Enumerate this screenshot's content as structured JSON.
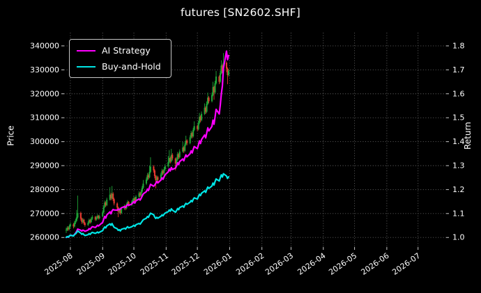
{
  "window": {
    "title": "futures [SN2602.SHF]"
  },
  "chart_data": {
    "type": "candlestick+line",
    "title": "futures [SN2602.SHF]",
    "background": "#000000",
    "grid": {
      "show": true,
      "style": "dotted",
      "color": "#6b6b6b"
    },
    "price_axis": {
      "label": "Price",
      "side": "left",
      "ticks": [
        260000,
        270000,
        280000,
        290000,
        300000,
        310000,
        320000,
        330000,
        340000
      ],
      "domain": [
        256000,
        345500
      ]
    },
    "return_axis": {
      "label": "Return",
      "side": "right",
      "ticks": [
        1.0,
        1.1,
        1.2,
        1.3,
        1.4,
        1.5,
        1.6,
        1.7,
        1.8
      ],
      "domain": [
        0.96,
        1.855
      ]
    },
    "x_axis": {
      "domain": [
        "2025-07-26",
        "2026-07-28"
      ],
      "tick_dates": [
        "2025-08-01",
        "2025-09-01",
        "2025-10-01",
        "2025-11-01",
        "2025-12-01",
        "2026-01-01",
        "2026-02-01",
        "2026-03-01",
        "2026-04-01",
        "2026-05-01",
        "2026-06-01",
        "2026-07-01"
      ],
      "tick_labels": [
        "2025-08",
        "2025-09",
        "2025-10",
        "2025-11",
        "2025-12",
        "2026-01",
        "2026-02",
        "2026-03",
        "2026-04",
        "2026-05",
        "2026-06",
        "2026-07"
      ],
      "label_rotation": -35
    },
    "legend": {
      "position": "top-left",
      "entries": [
        {
          "label": "AI Strategy",
          "color": "#ff00ff"
        },
        {
          "label": "Buy-and-Hold",
          "color": "#00e5e5"
        }
      ]
    },
    "candles": {
      "up_color": "#1fa637",
      "down_color": "#e8392f",
      "columns": [
        "date",
        "open",
        "high",
        "low",
        "close"
      ],
      "rows": [
        [
          "2025-07-28",
          263000,
          264100,
          261900,
          263200
        ],
        [
          "2025-07-29",
          263200,
          264700,
          262700,
          264000
        ],
        [
          "2025-07-30",
          264000,
          264600,
          262800,
          263500
        ],
        [
          "2025-07-31",
          263500,
          265400,
          263100,
          264800
        ],
        [
          "2025-08-01",
          264800,
          266300,
          264200,
          265500
        ],
        [
          "2025-08-04",
          265500,
          266000,
          263800,
          264600
        ],
        [
          "2025-08-05",
          264600,
          266900,
          264200,
          266200
        ],
        [
          "2025-08-06",
          266200,
          267800,
          265600,
          267000
        ],
        [
          "2025-08-07",
          267000,
          271500,
          266600,
          268400
        ],
        [
          "2025-08-08",
          268400,
          277500,
          267900,
          270200
        ],
        [
          "2025-08-11",
          270200,
          270800,
          267000,
          267800
        ],
        [
          "2025-08-12",
          267800,
          268300,
          265700,
          266500
        ],
        [
          "2025-08-13",
          266500,
          268100,
          265900,
          267400
        ],
        [
          "2025-08-14",
          267400,
          267800,
          265300,
          266000
        ],
        [
          "2025-08-15",
          266000,
          266500,
          264500,
          265200
        ],
        [
          "2025-08-18",
          265200,
          266800,
          264800,
          266100
        ],
        [
          "2025-08-19",
          266100,
          267900,
          265700,
          267300
        ],
        [
          "2025-08-20",
          267300,
          267700,
          265800,
          266400
        ],
        [
          "2025-08-21",
          266400,
          268400,
          266000,
          267800
        ],
        [
          "2025-08-22",
          267800,
          269300,
          267300,
          268600
        ],
        [
          "2025-08-25",
          268600,
          269000,
          266900,
          267500
        ],
        [
          "2025-08-26",
          267500,
          268900,
          267000,
          268200
        ],
        [
          "2025-08-27",
          268200,
          269700,
          267700,
          269000
        ],
        [
          "2025-08-28",
          269000,
          269400,
          267500,
          268100
        ],
        [
          "2025-08-29",
          268100,
          269500,
          267600,
          268800
        ],
        [
          "2025-09-01",
          268800,
          271200,
          268400,
          270500
        ],
        [
          "2025-09-02",
          270500,
          273500,
          270100,
          272800
        ],
        [
          "2025-09-03",
          272800,
          275400,
          272300,
          274600
        ],
        [
          "2025-09-04",
          274600,
          275100,
          272800,
          273500
        ],
        [
          "2025-09-05",
          273500,
          276600,
          273100,
          275800
        ],
        [
          "2025-09-08",
          275800,
          281000,
          275400,
          277900
        ],
        [
          "2025-09-09",
          277900,
          278600,
          275500,
          276400
        ],
        [
          "2025-09-10",
          276400,
          281500,
          275900,
          278300
        ],
        [
          "2025-09-11",
          278300,
          278900,
          275200,
          276000
        ],
        [
          "2025-09-12",
          276000,
          276600,
          273400,
          274200
        ],
        [
          "2025-09-15",
          274200,
          274700,
          271700,
          272500
        ],
        [
          "2025-09-16",
          272500,
          272900,
          268500,
          270800
        ],
        [
          "2025-09-17",
          270800,
          272400,
          270100,
          271600
        ],
        [
          "2025-09-18",
          271600,
          272000,
          269500,
          270200
        ],
        [
          "2025-09-19",
          270200,
          272700,
          269800,
          272000
        ],
        [
          "2025-09-22",
          272000,
          273800,
          271500,
          273100
        ],
        [
          "2025-09-23",
          273100,
          273600,
          271400,
          272200
        ],
        [
          "2025-09-24",
          272200,
          274500,
          271800,
          273800
        ],
        [
          "2025-09-25",
          273800,
          275600,
          273300,
          274900
        ],
        [
          "2025-09-26",
          274900,
          275200,
          272900,
          273600
        ],
        [
          "2025-09-29",
          273600,
          275500,
          273100,
          274800
        ],
        [
          "2025-09-30",
          274800,
          276300,
          274200,
          275600
        ],
        [
          "2025-10-01",
          275600,
          277200,
          275000,
          276400
        ],
        [
          "2025-10-02",
          276400,
          276800,
          274500,
          275200
        ],
        [
          "2025-10-03",
          275200,
          277700,
          274800,
          277000
        ],
        [
          "2025-10-06",
          277000,
          279300,
          276500,
          278500
        ],
        [
          "2025-10-07",
          278500,
          279000,
          276900,
          277600
        ],
        [
          "2025-10-08",
          277600,
          280000,
          277100,
          279200
        ],
        [
          "2025-10-09",
          279200,
          281600,
          278700,
          280800
        ],
        [
          "2025-10-10",
          280800,
          284000,
          280300,
          282500
        ],
        [
          "2025-10-13",
          282500,
          285100,
          281900,
          284200
        ],
        [
          "2025-10-14",
          284200,
          287000,
          283700,
          286000
        ],
        [
          "2025-10-15",
          286000,
          286700,
          284200,
          285100
        ],
        [
          "2025-10-16",
          285100,
          290000,
          284700,
          287400
        ],
        [
          "2025-10-17",
          287400,
          293500,
          286900,
          289600
        ],
        [
          "2025-10-20",
          289600,
          290200,
          287100,
          288000
        ],
        [
          "2025-10-21",
          288000,
          288500,
          284700,
          285600
        ],
        [
          "2025-10-22",
          285600,
          286000,
          280500,
          283900
        ],
        [
          "2025-10-23",
          283900,
          286000,
          283100,
          285200
        ],
        [
          "2025-10-24",
          285200,
          285700,
          283300,
          284100
        ],
        [
          "2025-10-27",
          284100,
          287100,
          283600,
          286300
        ],
        [
          "2025-10-28",
          286300,
          288700,
          285800,
          287800
        ],
        [
          "2025-10-29",
          287800,
          288300,
          286100,
          286900
        ],
        [
          "2025-10-30",
          286900,
          289400,
          286400,
          288500
        ],
        [
          "2025-10-31",
          288500,
          290600,
          288000,
          289700
        ],
        [
          "2025-11-03",
          289700,
          294000,
          289200,
          291400
        ],
        [
          "2025-11-04",
          291400,
          296500,
          290900,
          293200
        ],
        [
          "2025-11-05",
          293200,
          293800,
          290900,
          291800
        ],
        [
          "2025-11-06",
          291800,
          297000,
          291300,
          294500
        ],
        [
          "2025-11-07",
          294500,
          295200,
          292200,
          293000
        ],
        [
          "2025-11-10",
          293000,
          293400,
          288000,
          290800
        ],
        [
          "2025-11-11",
          290800,
          293500,
          290200,
          292600
        ],
        [
          "2025-11-12",
          292600,
          295700,
          292100,
          294800
        ],
        [
          "2025-11-13",
          294800,
          295300,
          292700,
          293500
        ],
        [
          "2025-11-14",
          293500,
          296800,
          293000,
          295900
        ],
        [
          "2025-11-17",
          295900,
          300000,
          295400,
          297600
        ],
        [
          "2025-11-18",
          297600,
          298100,
          295300,
          296200
        ],
        [
          "2025-11-19",
          296200,
          299700,
          295700,
          298800
        ],
        [
          "2025-11-20",
          298800,
          302500,
          298300,
          300500
        ],
        [
          "2025-11-21",
          300500,
          301000,
          298500,
          299400
        ],
        [
          "2025-11-24",
          299400,
          302700,
          298900,
          301800
        ],
        [
          "2025-11-25",
          301800,
          304600,
          301300,
          303600
        ],
        [
          "2025-11-26",
          303600,
          304100,
          301400,
          302200
        ],
        [
          "2025-11-27",
          302200,
          305800,
          301700,
          304900
        ],
        [
          "2025-11-28",
          304900,
          308500,
          304400,
          306500
        ],
        [
          "2025-12-01",
          306500,
          307000,
          304300,
          305200
        ],
        [
          "2025-12-02",
          305200,
          308700,
          304700,
          307800
        ],
        [
          "2025-12-03",
          307800,
          312000,
          307300,
          310400
        ],
        [
          "2025-12-04",
          310400,
          311000,
          308100,
          309000
        ],
        [
          "2025-12-05",
          309000,
          312600,
          308500,
          311600
        ],
        [
          "2025-12-08",
          311600,
          316000,
          311100,
          314200
        ],
        [
          "2025-12-09",
          314200,
          314800,
          311600,
          312500
        ],
        [
          "2025-12-10",
          312500,
          316800,
          312000,
          315800
        ],
        [
          "2025-12-11",
          315800,
          320500,
          315300,
          318400
        ],
        [
          "2025-12-12",
          318400,
          319000,
          316000,
          316900
        ],
        [
          "2025-12-15",
          316900,
          320500,
          316400,
          319500
        ],
        [
          "2025-12-16",
          319500,
          325000,
          319000,
          322800
        ],
        [
          "2025-12-17",
          322800,
          323300,
          317500,
          320600
        ],
        [
          "2025-12-18",
          320600,
          325400,
          320100,
          324400
        ],
        [
          "2025-12-19",
          324400,
          329500,
          323900,
          327200
        ],
        [
          "2025-12-22",
          327200,
          327700,
          324000,
          325000
        ],
        [
          "2025-12-23",
          325000,
          329600,
          324500,
          328600
        ],
        [
          "2025-12-24",
          328600,
          334000,
          328100,
          331800
        ],
        [
          "2025-12-25",
          331800,
          332300,
          328500,
          329400
        ],
        [
          "2025-12-26",
          329400,
          337000,
          328900,
          333000
        ],
        [
          "2025-12-29",
          333000,
          333600,
          329000,
          330500
        ],
        [
          "2025-12-30",
          330500,
          331000,
          324000,
          327800
        ],
        [
          "2025-12-31",
          327800,
          330400,
          327200,
          329600
        ]
      ]
    },
    "series": [
      {
        "name": "AI Strategy",
        "color": "#ff00ff",
        "axis": "return",
        "dates": "same-as-candles",
        "values": [
          1.0,
          1.003,
          1.001,
          1.006,
          1.01,
          1.007,
          1.013,
          1.018,
          1.025,
          1.035,
          1.03,
          1.027,
          1.031,
          1.029,
          1.026,
          1.031,
          1.037,
          1.034,
          1.04,
          1.045,
          1.042,
          1.046,
          1.051,
          1.048,
          1.052,
          1.063,
          1.076,
          1.088,
          1.081,
          1.094,
          1.107,
          1.099,
          1.111,
          1.117,
          1.115,
          1.114,
          1.118,
          1.116,
          1.119,
          1.124,
          1.129,
          1.126,
          1.132,
          1.138,
          1.134,
          1.14,
          1.145,
          1.15,
          1.144,
          1.153,
          1.161,
          1.156,
          1.164,
          1.173,
          1.182,
          1.192,
          1.202,
          1.196,
          1.209,
          1.222,
          1.214,
          1.219,
          1.226,
          1.234,
          1.228,
          1.24,
          1.249,
          1.243,
          1.253,
          1.262,
          1.274,
          1.286,
          1.278,
          1.292,
          1.284,
          1.29,
          1.3,
          1.312,
          1.304,
          1.317,
          1.328,
          1.32,
          1.334,
          1.345,
          1.337,
          1.35,
          1.362,
          1.353,
          1.368,
          1.38,
          1.371,
          1.386,
          1.403,
          1.392,
          1.409,
          1.428,
          1.416,
          1.437,
          1.458,
          1.445,
          1.464,
          1.49,
          1.473,
          1.503,
          1.535,
          1.516,
          1.553,
          1.6,
          1.632,
          1.706,
          1.778,
          1.742,
          1.76
        ]
      },
      {
        "name": "Buy-and-Hold",
        "color": "#00e5e5",
        "axis": "return",
        "dates": "same-as-candles",
        "derived": "close / first_open"
      }
    ]
  }
}
